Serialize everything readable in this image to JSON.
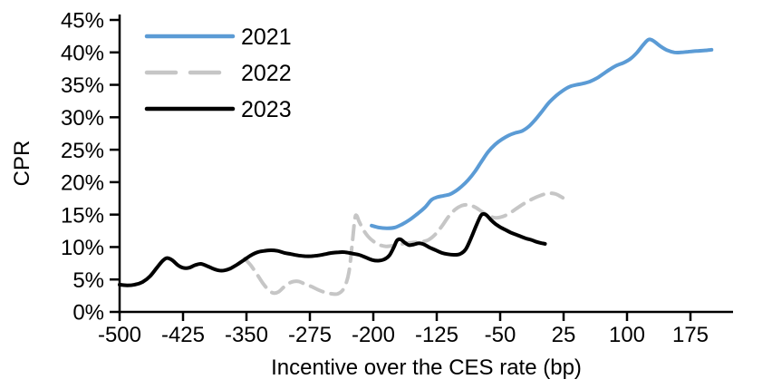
{
  "figure": {
    "background": "#ffffff",
    "axis_color": "#000000"
  },
  "chart_data": {
    "type": "line",
    "title": "",
    "xlabel": "Incentive over the CES rate (bp)",
    "ylabel": "CPR",
    "xlim": [
      -500,
      225
    ],
    "ylim": [
      0,
      45
    ],
    "grid": false,
    "legend_position": "top-left-inside",
    "x_ticks": [
      -500,
      -425,
      -350,
      -275,
      -200,
      -125,
      -50,
      25,
      100,
      175
    ],
    "x_tick_labels": [
      "-500",
      "-425",
      "-350",
      "-275",
      "-200",
      "-125",
      "-50",
      "25",
      "100",
      "175"
    ],
    "y_ticks": [
      0,
      5,
      10,
      15,
      20,
      25,
      30,
      35,
      40,
      45
    ],
    "y_tick_labels": [
      "0%",
      "5%",
      "10%",
      "15%",
      "20%",
      "25%",
      "30%",
      "35%",
      "40%",
      "45%"
    ],
    "series": [
      {
        "name": "2021",
        "color": "#5B9BD5",
        "dash": "solid",
        "points": [
          [
            -202,
            13.3
          ],
          [
            -193,
            13.0
          ],
          [
            -184,
            12.9
          ],
          [
            -175,
            13.0
          ],
          [
            -166,
            13.5
          ],
          [
            -157,
            14.2
          ],
          [
            -148,
            15.1
          ],
          [
            -139,
            16.1
          ],
          [
            -131,
            17.3
          ],
          [
            -124,
            17.7
          ],
          [
            -117,
            17.9
          ],
          [
            -110,
            18.1
          ],
          [
            -103,
            18.6
          ],
          [
            -96,
            19.3
          ],
          [
            -88,
            20.3
          ],
          [
            -80,
            21.6
          ],
          [
            -72,
            23.2
          ],
          [
            -64,
            24.7
          ],
          [
            -56,
            25.8
          ],
          [
            -48,
            26.6
          ],
          [
            -40,
            27.2
          ],
          [
            -32,
            27.6
          ],
          [
            -24,
            27.9
          ],
          [
            -16,
            28.6
          ],
          [
            -8,
            29.7
          ],
          [
            0,
            31.0
          ],
          [
            8,
            32.3
          ],
          [
            16,
            33.3
          ],
          [
            24,
            34.1
          ],
          [
            32,
            34.7
          ],
          [
            40,
            35.0
          ],
          [
            48,
            35.2
          ],
          [
            56,
            35.5
          ],
          [
            64,
            36.0
          ],
          [
            72,
            36.7
          ],
          [
            80,
            37.4
          ],
          [
            88,
            38.0
          ],
          [
            96,
            38.4
          ],
          [
            104,
            39.0
          ],
          [
            112,
            40.0
          ],
          [
            120,
            41.3
          ],
          [
            126,
            42.0
          ],
          [
            132,
            41.7
          ],
          [
            140,
            40.9
          ],
          [
            148,
            40.3
          ],
          [
            156,
            40.0
          ],
          [
            164,
            40.0
          ],
          [
            172,
            40.1
          ],
          [
            182,
            40.2
          ],
          [
            192,
            40.3
          ],
          [
            200,
            40.4
          ]
        ]
      },
      {
        "name": "2022",
        "color": "#C6C6C6",
        "dash": "dashed",
        "points": [
          [
            -352,
            8.2
          ],
          [
            -345,
            7.2
          ],
          [
            -338,
            5.9
          ],
          [
            -331,
            4.5
          ],
          [
            -324,
            3.4
          ],
          [
            -318,
            2.9
          ],
          [
            -312,
            3.1
          ],
          [
            -306,
            3.8
          ],
          [
            -300,
            4.4
          ],
          [
            -294,
            4.7
          ],
          [
            -288,
            4.7
          ],
          [
            -281,
            4.3
          ],
          [
            -273,
            3.9
          ],
          [
            -265,
            3.4
          ],
          [
            -257,
            3.0
          ],
          [
            -249,
            2.8
          ],
          [
            -242,
            2.8
          ],
          [
            -235,
            3.6
          ],
          [
            -229,
            6.0
          ],
          [
            -225,
            10.5
          ],
          [
            -222,
            14.2
          ],
          [
            -220,
            14.9
          ],
          [
            -217,
            14.0
          ],
          [
            -212,
            12.7
          ],
          [
            -206,
            11.6
          ],
          [
            -199,
            10.8
          ],
          [
            -192,
            10.3
          ],
          [
            -185,
            10.1
          ],
          [
            -177,
            10.2
          ],
          [
            -169,
            10.4
          ],
          [
            -161,
            10.6
          ],
          [
            -152,
            10.7
          ],
          [
            -143,
            10.8
          ],
          [
            -135,
            11.1
          ],
          [
            -127,
            11.9
          ],
          [
            -119,
            13.2
          ],
          [
            -111,
            14.7
          ],
          [
            -103,
            15.8
          ],
          [
            -95,
            16.4
          ],
          [
            -87,
            16.5
          ],
          [
            -79,
            16.1
          ],
          [
            -71,
            15.4
          ],
          [
            -63,
            14.8
          ],
          [
            -55,
            14.5
          ],
          [
            -47,
            14.7
          ],
          [
            -39,
            15.2
          ],
          [
            -31,
            15.9
          ],
          [
            -23,
            16.6
          ],
          [
            -15,
            17.2
          ],
          [
            -7,
            17.7
          ],
          [
            1,
            18.1
          ],
          [
            8,
            18.3
          ],
          [
            15,
            18.2
          ],
          [
            20,
            17.9
          ],
          [
            24,
            17.6
          ]
        ]
      },
      {
        "name": "2023",
        "color": "#000000",
        "dash": "solid",
        "points": [
          [
            -500,
            4.2
          ],
          [
            -491,
            4.1
          ],
          [
            -482,
            4.2
          ],
          [
            -473,
            4.6
          ],
          [
            -464,
            5.5
          ],
          [
            -456,
            6.8
          ],
          [
            -449,
            7.9
          ],
          [
            -444,
            8.3
          ],
          [
            -438,
            8.0
          ],
          [
            -431,
            7.2
          ],
          [
            -425,
            6.8
          ],
          [
            -418,
            6.8
          ],
          [
            -411,
            7.2
          ],
          [
            -404,
            7.4
          ],
          [
            -397,
            7.1
          ],
          [
            -390,
            6.7
          ],
          [
            -383,
            6.4
          ],
          [
            -376,
            6.4
          ],
          [
            -369,
            6.7
          ],
          [
            -361,
            7.3
          ],
          [
            -353,
            8.0
          ],
          [
            -345,
            8.7
          ],
          [
            -337,
            9.2
          ],
          [
            -329,
            9.4
          ],
          [
            -321,
            9.5
          ],
          [
            -313,
            9.4
          ],
          [
            -305,
            9.1
          ],
          [
            -297,
            8.9
          ],
          [
            -289,
            8.7
          ],
          [
            -281,
            8.6
          ],
          [
            -273,
            8.6
          ],
          [
            -265,
            8.7
          ],
          [
            -257,
            8.9
          ],
          [
            -249,
            9.1
          ],
          [
            -241,
            9.2
          ],
          [
            -233,
            9.2
          ],
          [
            -225,
            9.0
          ],
          [
            -217,
            8.8
          ],
          [
            -209,
            8.4
          ],
          [
            -201,
            8.0
          ],
          [
            -194,
            7.9
          ],
          [
            -187,
            8.1
          ],
          [
            -181,
            8.7
          ],
          [
            -176,
            9.9
          ],
          [
            -172,
            11.0
          ],
          [
            -168,
            11.2
          ],
          [
            -163,
            10.7
          ],
          [
            -158,
            10.3
          ],
          [
            -152,
            10.4
          ],
          [
            -146,
            10.6
          ],
          [
            -140,
            10.4
          ],
          [
            -133,
            9.9
          ],
          [
            -126,
            9.5
          ],
          [
            -119,
            9.1
          ],
          [
            -112,
            8.9
          ],
          [
            -105,
            8.8
          ],
          [
            -98,
            8.9
          ],
          [
            -91,
            9.6
          ],
          [
            -85,
            11.2
          ],
          [
            -78,
            13.4
          ],
          [
            -73,
            14.8
          ],
          [
            -70,
            15.1
          ],
          [
            -66,
            14.9
          ],
          [
            -61,
            14.2
          ],
          [
            -55,
            13.5
          ],
          [
            -49,
            13.0
          ],
          [
            -43,
            12.6
          ],
          [
            -37,
            12.2
          ],
          [
            -31,
            11.9
          ],
          [
            -25,
            11.6
          ],
          [
            -19,
            11.3
          ],
          [
            -13,
            11.1
          ],
          [
            -7,
            10.8
          ],
          [
            -1,
            10.6
          ],
          [
            3,
            10.5
          ]
        ]
      }
    ]
  }
}
